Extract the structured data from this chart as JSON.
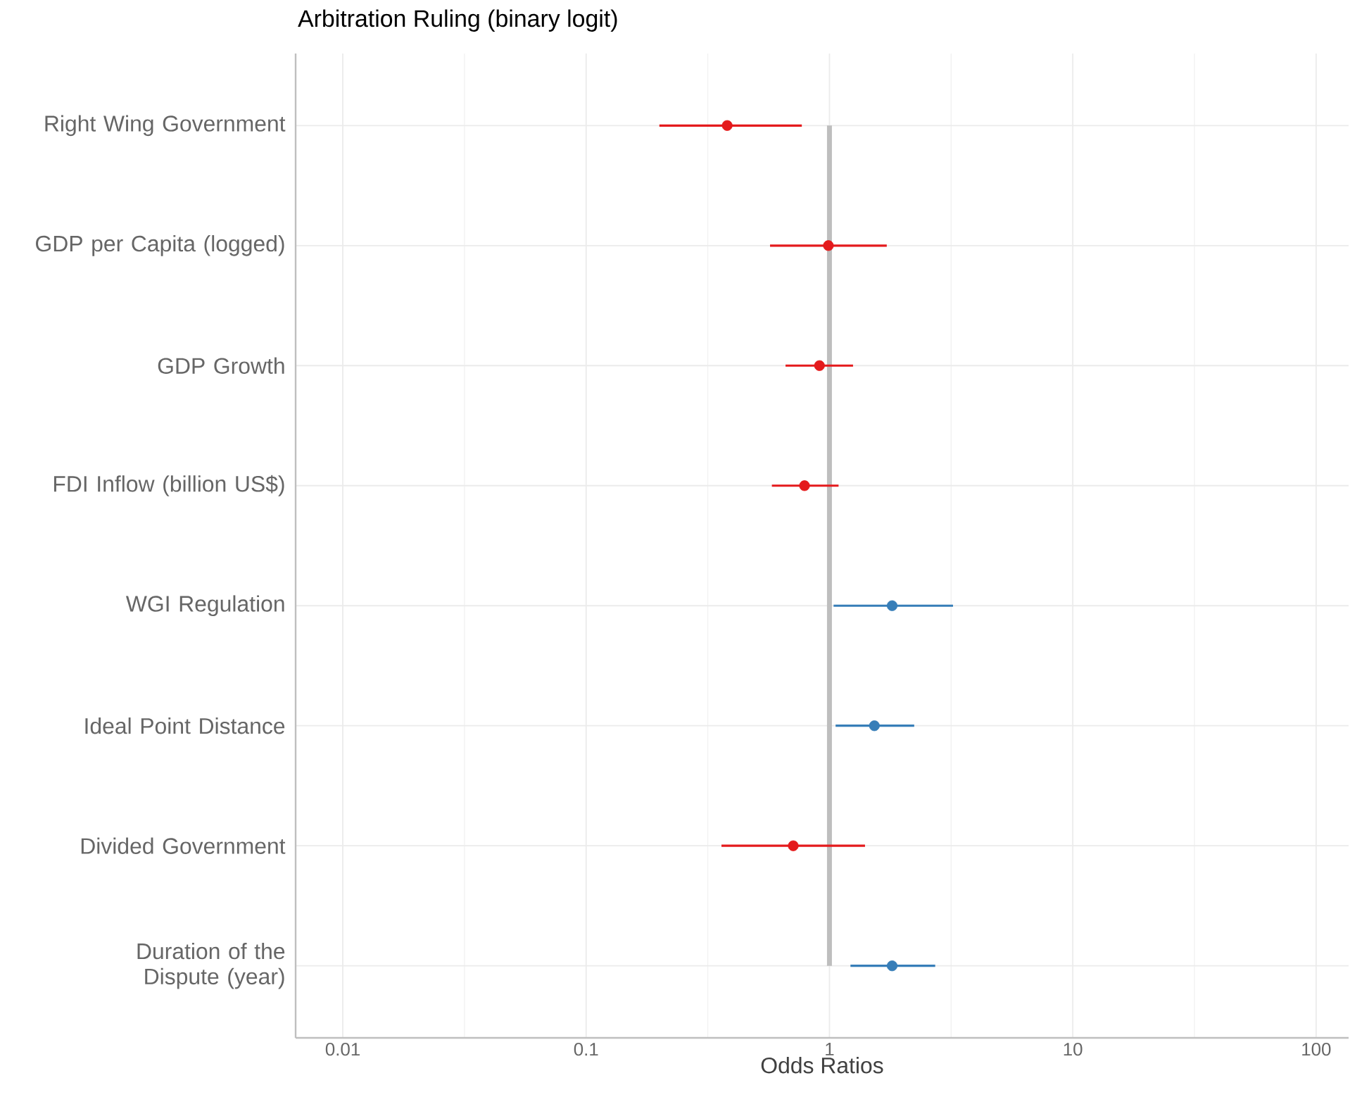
{
  "chart_data": {
    "type": "scatter",
    "title": "Arbitration Ruling (binary logit)",
    "xlabel": "Odds Ratios",
    "orientation": "horizontal",
    "categories": [
      "Right Wing Government",
      "GDP per Capita (logged)",
      "GDP Growth",
      "FDI Inflow (billion US$)",
      "WGI Regulation",
      "Ideal Point Distance",
      "Divided Government",
      "Duration of the Dispute (year)"
    ],
    "values": [
      0.38,
      0.99,
      0.91,
      0.79,
      1.81,
      1.53,
      0.71,
      1.81
    ],
    "errors": [
      [
        0.2,
        0.77
      ],
      [
        0.57,
        1.72
      ],
      [
        0.66,
        1.25
      ],
      [
        0.58,
        1.09
      ],
      [
        1.04,
        3.22
      ],
      [
        1.06,
        2.23
      ],
      [
        0.36,
        1.4
      ],
      [
        1.22,
        2.72
      ]
    ],
    "colors": [
      "#e41a1c",
      "#e41a1c",
      "#e41a1c",
      "#e41a1c",
      "#377eb8",
      "#377eb8",
      "#e41a1c",
      "#377eb8"
    ],
    "log": "x",
    "xlim": [
      0.0064,
      136
    ],
    "xticks": [
      0.01,
      0.1,
      1,
      10,
      100
    ],
    "ref_lines": [
      {
        "axis": "x",
        "value": 1,
        "color": "#bebebe"
      }
    ],
    "grid": true
  }
}
